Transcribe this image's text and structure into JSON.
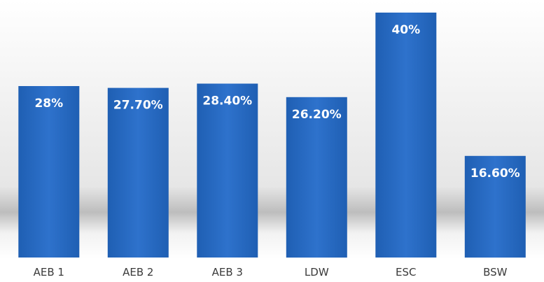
{
  "chart_data": {
    "type": "bar",
    "categories": [
      "AEB 1",
      "AEB 2",
      "AEB 3",
      "LDW",
      "ESC",
      "BSW"
    ],
    "values": [
      28,
      27.7,
      28.4,
      26.2,
      40,
      16.6
    ],
    "data_labels": [
      "28%",
      "27.70%",
      "28.40%",
      "26.20%",
      "40%",
      "16.60%"
    ],
    "ylim": [
      0,
      40
    ],
    "grid": false,
    "legend": "none",
    "colors": {
      "bar": "#2567be",
      "bar_highlight": "#2f74cf",
      "bar_shadow": "#1b4f9a"
    }
  }
}
